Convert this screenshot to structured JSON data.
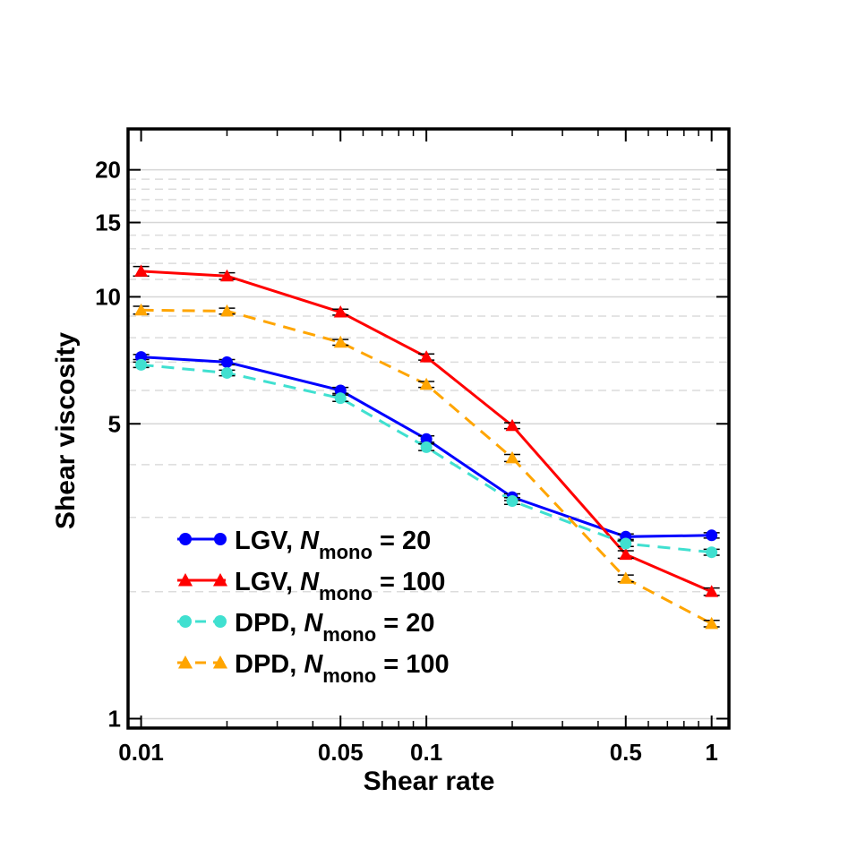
{
  "chart_data": {
    "type": "line",
    "xscale": "log",
    "yscale": "log",
    "xlabel": "Shear rate",
    "ylabel": "Shear viscosity",
    "xlim": [
      0.009,
      1.15
    ],
    "ylim": [
      0.95,
      25
    ],
    "x": [
      0.01,
      0.02,
      0.05,
      0.1,
      0.2,
      0.5,
      1
    ],
    "xticks": [
      {
        "value": 0.01,
        "label": "0.01"
      },
      {
        "value": 0.05,
        "label": "0.05"
      },
      {
        "value": 0.1,
        "label": "0.1"
      },
      {
        "value": 0.5,
        "label": "0.5"
      },
      {
        "value": 1,
        "label": "1"
      }
    ],
    "yticks": [
      {
        "value": 1,
        "label": "1"
      },
      {
        "value": 5,
        "label": "5"
      },
      {
        "value": 10,
        "label": "10"
      },
      {
        "value": 15,
        "label": "15"
      },
      {
        "value": 20,
        "label": "20"
      }
    ],
    "series": [
      {
        "name": "LGV, N_mono = 20",
        "method": "LGV",
        "n": "20",
        "color": "#0000ff",
        "marker": "circle",
        "dash": false,
        "values": [
          7.2,
          7.0,
          6.0,
          4.6,
          3.35,
          2.7,
          2.72
        ],
        "errors": [
          0.1,
          0.1,
          0.1,
          0.08,
          0.06,
          0.04,
          0.04
        ]
      },
      {
        "name": "LGV, N_mono = 100",
        "method": "LGV",
        "n": "100",
        "color": "#ff0000",
        "marker": "triangle",
        "dash": false,
        "values": [
          11.5,
          11.2,
          9.2,
          7.2,
          4.95,
          2.45,
          2.0
        ],
        "errors": [
          0.3,
          0.2,
          0.15,
          0.12,
          0.08,
          0.05,
          0.04
        ]
      },
      {
        "name": "DPD, N_mono = 20",
        "method": "DPD",
        "n": "20",
        "color": "#40e0d0",
        "marker": "circle",
        "dash": true,
        "values": [
          6.9,
          6.6,
          5.75,
          4.4,
          3.28,
          2.6,
          2.48
        ],
        "errors": [
          0.1,
          0.1,
          0.1,
          0.08,
          0.06,
          0.04,
          0.04
        ]
      },
      {
        "name": "DPD, N_mono = 100",
        "method": "DPD",
        "n": "100",
        "color": "#ffa500",
        "marker": "triangle",
        "dash": true,
        "values": [
          9.3,
          9.25,
          7.8,
          6.2,
          4.15,
          2.15,
          1.68
        ],
        "errors": [
          0.2,
          0.15,
          0.12,
          0.1,
          0.08,
          0.04,
          0.03
        ]
      }
    ],
    "legend": {
      "prefix_symbol": "N",
      "subscript": "mono",
      "equals": "=",
      "placement": "lower-left"
    }
  }
}
